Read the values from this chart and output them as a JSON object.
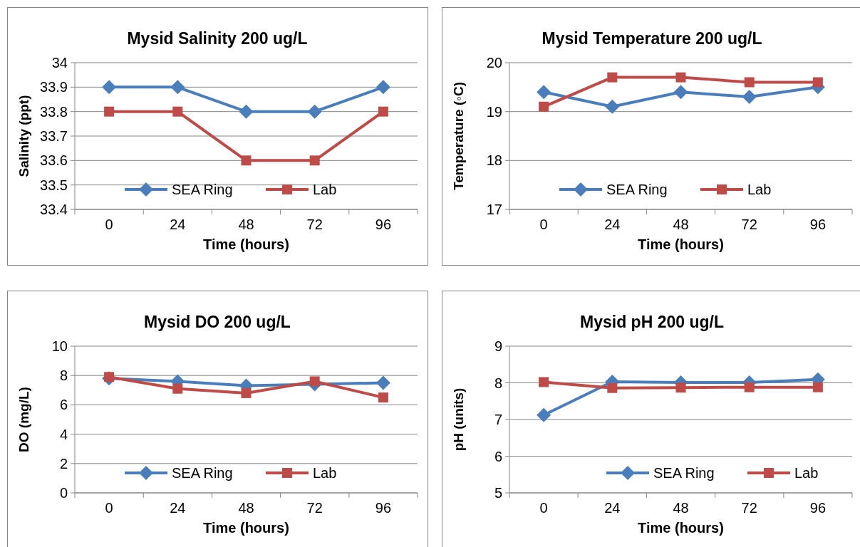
{
  "chart_data": [
    {
      "type": "line",
      "title": "Mysid Salinity 200 ug/L",
      "xlabel": "Time (hours)",
      "ylabel": "Salinity (ppt)",
      "categories": [
        "0",
        "24",
        "48",
        "72",
        "96"
      ],
      "ylim": [
        33.4,
        34
      ],
      "yticks": [
        33.4,
        33.5,
        33.6,
        33.7,
        33.8,
        33.9,
        34
      ],
      "grid": "y",
      "legend": "bottom",
      "series": [
        {
          "name": "SEA Ring",
          "color": "#4a7ebb",
          "marker": "diamond",
          "values": [
            33.9,
            33.9,
            33.8,
            33.8,
            33.9
          ]
        },
        {
          "name": "Lab",
          "color": "#be4b48",
          "marker": "square",
          "values": [
            33.8,
            33.8,
            33.6,
            33.6,
            33.8
          ]
        }
      ]
    },
    {
      "type": "line",
      "title": "Mysid Temperature 200 ug/L",
      "xlabel": "Time (hours)",
      "ylabel": "Temperature (◦C)",
      "categories": [
        "0",
        "24",
        "48",
        "72",
        "96"
      ],
      "ylim": [
        17,
        20
      ],
      "yticks": [
        17,
        18,
        19,
        20
      ],
      "grid": "y",
      "legend": "bottom",
      "series": [
        {
          "name": "SEA Ring",
          "color": "#4a7ebb",
          "marker": "diamond",
          "values": [
            19.4,
            19.1,
            19.4,
            19.3,
            19.5
          ]
        },
        {
          "name": "Lab",
          "color": "#be4b48",
          "marker": "square",
          "values": [
            19.1,
            19.7,
            19.7,
            19.6,
            19.6
          ]
        }
      ]
    },
    {
      "type": "line",
      "title": "Mysid DO 200 ug/L",
      "xlabel": "Time (hours)",
      "ylabel": "DO (mg/L)",
      "categories": [
        "0",
        "24",
        "48",
        "72",
        "96"
      ],
      "ylim": [
        0,
        10
      ],
      "yticks": [
        0,
        2,
        4,
        6,
        8,
        10
      ],
      "grid": "y",
      "legend": "bottom",
      "series": [
        {
          "name": "SEA Ring",
          "color": "#4a7ebb",
          "marker": "diamond",
          "values": [
            7.8,
            7.6,
            7.3,
            7.4,
            7.5
          ]
        },
        {
          "name": "Lab",
          "color": "#be4b48",
          "marker": "square",
          "values": [
            7.9,
            7.1,
            6.8,
            7.6,
            6.5
          ]
        }
      ]
    },
    {
      "type": "line",
      "title": "Mysid pH 200 ug/L",
      "xlabel": "Time (hours)",
      "ylabel": "pH (units)",
      "categories": [
        "0",
        "24",
        "48",
        "72",
        "96"
      ],
      "ylim": [
        5,
        9
      ],
      "yticks": [
        5,
        6,
        7,
        8,
        9
      ],
      "grid": "y",
      "legend": "bottom right",
      "series": [
        {
          "name": "SEA Ring",
          "color": "#4a7ebb",
          "marker": "diamond",
          "values": [
            7.12,
            8.03,
            8.01,
            8.01,
            8.09
          ]
        },
        {
          "name": "Lab",
          "color": "#be4b48",
          "marker": "square",
          "values": [
            8.02,
            7.86,
            7.87,
            7.88,
            7.88
          ]
        }
      ]
    }
  ]
}
